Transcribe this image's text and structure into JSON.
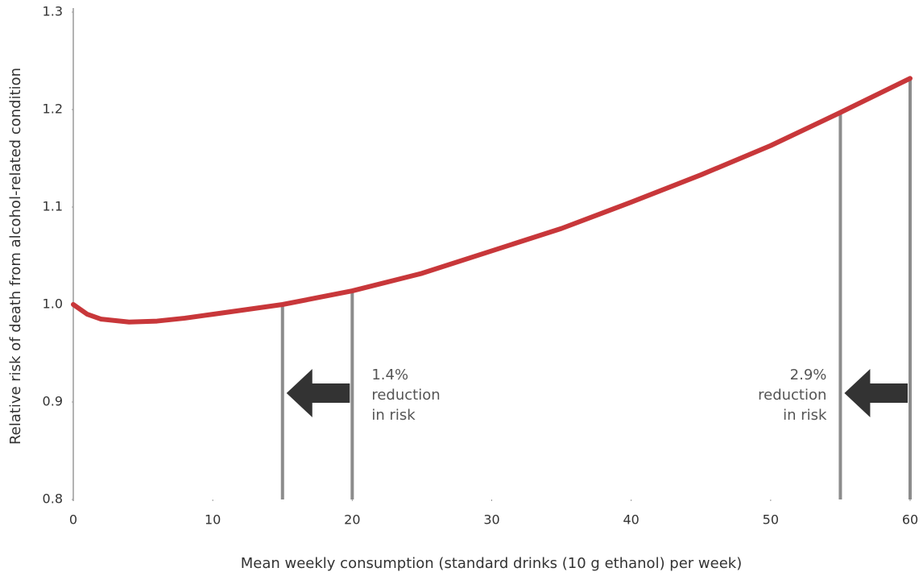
{
  "chart_data": {
    "type": "line",
    "xlabel": "Mean weekly consumption (standard drinks (10 g ethanol) per week)",
    "ylabel": "Relative risk of death from alcohol-related condition",
    "x": [
      0,
      1,
      2,
      4,
      6,
      8,
      10,
      15,
      20,
      25,
      30,
      35,
      40,
      45,
      50,
      55,
      60
    ],
    "series": [
      {
        "color": "#c8373a",
        "values": [
          1.0,
          0.99,
          0.985,
          0.982,
          0.983,
          0.986,
          0.99,
          1.0,
          1.014,
          1.032,
          1.055,
          1.078,
          1.105,
          1.133,
          1.163,
          1.197,
          1.232
        ]
      }
    ],
    "xlim": [
      0,
      60
    ],
    "xticks": [
      0,
      10,
      20,
      30,
      40,
      50,
      60
    ],
    "ylim": [
      0.8,
      1.3
    ],
    "yticks": [
      0.8,
      0.9,
      {
        "value": 1,
        "label": "1.0"
      },
      1.1,
      1.2,
      1.3
    ],
    "reductions": [
      {
        "from": 20,
        "to": 15,
        "label_lines": [
          "1.4%",
          "reduction",
          "in risk"
        ]
      },
      {
        "from": 60,
        "to": 55,
        "label_lines": [
          "2.9%",
          "reduction",
          "in risk"
        ]
      }
    ]
  }
}
